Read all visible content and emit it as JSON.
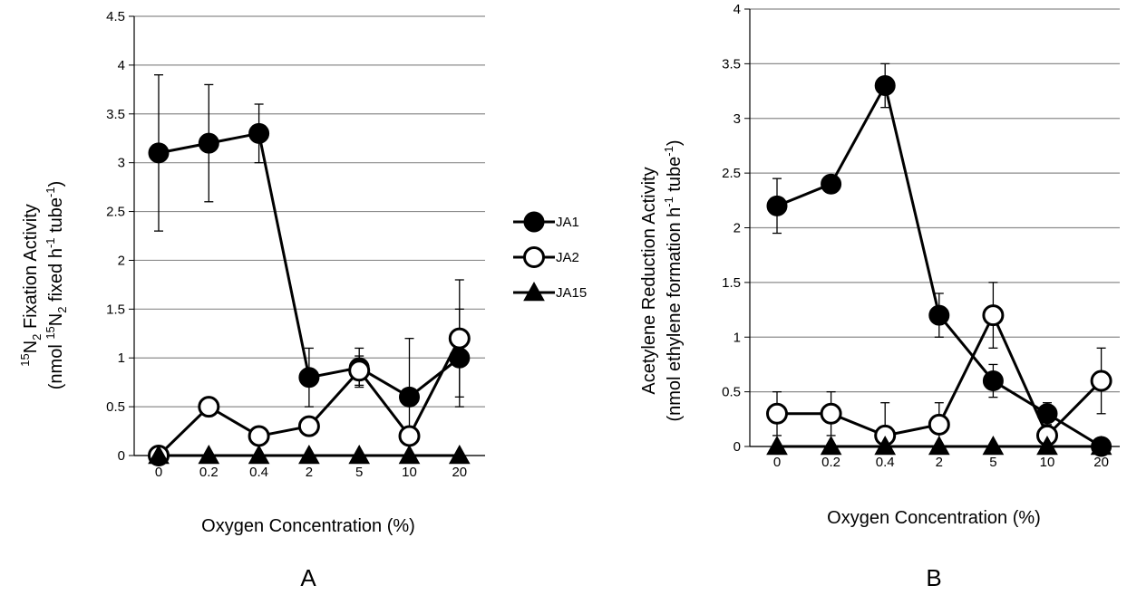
{
  "legend": [
    {
      "name": "JA1",
      "marker": "filled-circle"
    },
    {
      "name": "JA2",
      "marker": "open-circle"
    },
    {
      "name": "JA15",
      "marker": "filled-triangle"
    }
  ],
  "chart_data": [
    {
      "type": "line",
      "panel_label": "A",
      "categories": [
        "0",
        "0.2",
        "0.4",
        "2",
        "5",
        "10",
        "20"
      ],
      "xlabel": "Oxygen Concentration (%)",
      "ylabel_line1": {
        "pre": "",
        "sup1": "15",
        "mid1": "N",
        "sub1": "2",
        "post": " Fixation Activity"
      },
      "ylabel_line2": {
        "pre": "(nmol ",
        "sup1": "15",
        "mid1": "N",
        "sub1": "2",
        "mid2": " fixed h",
        "sup2": "-1",
        "mid3": " tube",
        "sup3": "-1",
        "post": ")"
      },
      "ylim": [
        0,
        4.5
      ],
      "yticks": [
        "0",
        "0.5",
        "1",
        "1.5",
        "2",
        "2.5",
        "3",
        "3.5",
        "4",
        "4.5"
      ],
      "grid": true,
      "series": [
        {
          "name": "JA1",
          "marker": "filled-circle",
          "values": [
            3.1,
            3.2,
            3.3,
            0.8,
            0.9,
            0.6,
            1.0
          ],
          "err": [
            0.8,
            0.6,
            0.3,
            0.3,
            0.2,
            0.6,
            0.5
          ]
        },
        {
          "name": "JA2",
          "marker": "open-circle",
          "values": [
            0.0,
            0.5,
            0.2,
            0.3,
            0.87,
            0.2,
            1.2
          ],
          "err": [
            0,
            0,
            0,
            0,
            0.15,
            0,
            0.6
          ]
        },
        {
          "name": "JA15",
          "marker": "filled-triangle",
          "values": [
            0,
            0,
            0,
            0,
            0,
            0,
            0
          ],
          "err": [
            0,
            0,
            0,
            0,
            0,
            0,
            0
          ]
        }
      ]
    },
    {
      "type": "line",
      "panel_label": "B",
      "categories": [
        "0",
        "0.2",
        "0.4",
        "2",
        "5",
        "10",
        "20"
      ],
      "xlabel": "Oxygen Concentration (%)",
      "ylabel_line1": "Acetylene Reduction Activity",
      "ylabel_line2": {
        "pre": "(nmol ethylene formation h",
        "sup1": "-1",
        "mid1": " tube",
        "sup2": "-1",
        "post": ")"
      },
      "ylim": [
        0,
        4
      ],
      "yticks": [
        "0",
        "0.5",
        "1",
        "1.5",
        "2",
        "2.5",
        "3",
        "3.5",
        "4"
      ],
      "grid": true,
      "series": [
        {
          "name": "JA1",
          "marker": "filled-circle",
          "values": [
            2.2,
            2.4,
            3.3,
            1.2,
            0.6,
            0.3,
            0.0
          ],
          "err": [
            0.25,
            0.08,
            0.2,
            0.2,
            0.15,
            0.1,
            0
          ]
        },
        {
          "name": "JA2",
          "marker": "open-circle",
          "values": [
            0.3,
            0.3,
            0.1,
            0.2,
            1.2,
            0.1,
            0.6
          ],
          "err": [
            0.2,
            0.2,
            0.3,
            0.2,
            0.3,
            0,
            0.3
          ]
        },
        {
          "name": "JA15",
          "marker": "filled-triangle",
          "values": [
            0,
            0,
            0,
            0,
            0,
            0,
            0
          ],
          "err": [
            0,
            0,
            0,
            0,
            0,
            0,
            0
          ]
        }
      ]
    }
  ]
}
